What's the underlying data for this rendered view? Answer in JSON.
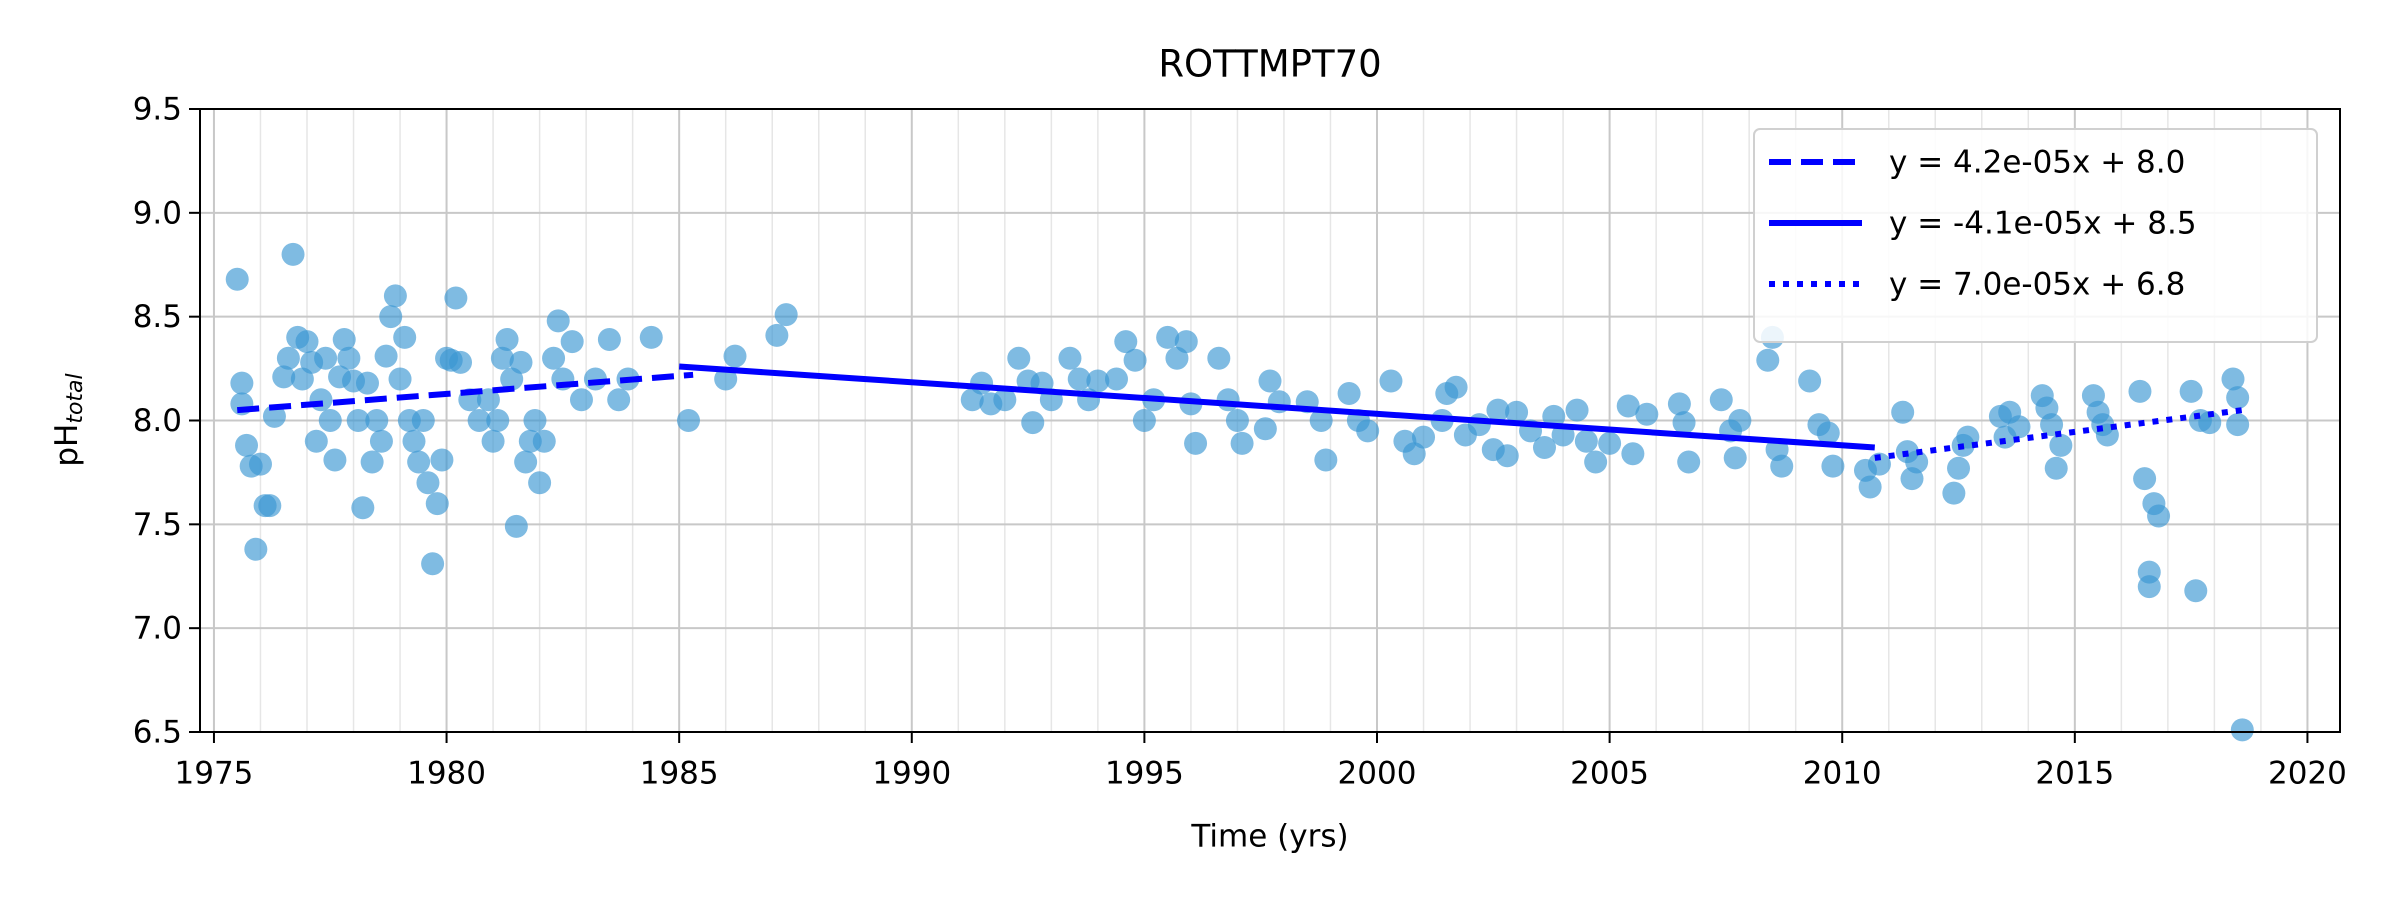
{
  "chart_data": {
    "type": "scatter",
    "title": "ROTTMPT70",
    "xlabel": "Time (yrs)",
    "ylabel": "pH",
    "ylabel_sub": "total",
    "xlim": [
      1974.7,
      2020.7
    ],
    "ylim": [
      6.5,
      9.5
    ],
    "xticks": [
      1975,
      1980,
      1985,
      1990,
      1995,
      2000,
      2005,
      2010,
      2015,
      2020
    ],
    "yticks": [
      6.5,
      {
        "value": 7,
        "label": "7.0"
      },
      7.5,
      {
        "value": 8,
        "label": "8.0"
      },
      8.5,
      {
        "value": 9,
        "label": "9.0"
      },
      9.5
    ],
    "grid": true,
    "minor_grid_x": true,
    "legend": "upper right",
    "color": "#3a97d3",
    "x": [
      1975.5,
      1975.6,
      1975.6,
      1975.7,
      1975.8,
      1975.9,
      1976.0,
      1976.1,
      1976.2,
      1976.3,
      1976.5,
      1976.6,
      1976.7,
      1976.8,
      1976.9,
      1977.0,
      1977.1,
      1977.2,
      1977.3,
      1977.4,
      1977.5,
      1977.6,
      1977.7,
      1977.8,
      1977.9,
      1978.0,
      1978.1,
      1978.2,
      1978.3,
      1978.4,
      1978.5,
      1978.6,
      1978.7,
      1978.8,
      1978.9,
      1979.0,
      1979.1,
      1979.2,
      1979.3,
      1979.4,
      1979.5,
      1979.6,
      1979.7,
      1979.8,
      1979.9,
      1980.0,
      1980.1,
      1980.2,
      1980.3,
      1980.5,
      1980.7,
      1980.9,
      1981.0,
      1981.1,
      1981.2,
      1981.3,
      1981.4,
      1981.5,
      1981.6,
      1981.7,
      1981.8,
      1981.9,
      1982.0,
      1982.1,
      1982.3,
      1982.4,
      1982.5,
      1982.7,
      1982.9,
      1983.2,
      1983.5,
      1983.7,
      1983.9,
      1984.4,
      1985.2,
      1986.0,
      1986.2,
      1987.1,
      1987.3,
      1991.3,
      1991.5,
      1991.7,
      1992.0,
      1992.3,
      1992.5,
      1992.6,
      1992.8,
      1993.0,
      1993.4,
      1993.6,
      1993.8,
      1994.0,
      1994.4,
      1994.6,
      1994.8,
      1995.0,
      1995.2,
      1995.5,
      1995.7,
      1995.9,
      1996.0,
      1996.1,
      1996.6,
      1996.8,
      1997.0,
      1997.1,
      1997.6,
      1997.7,
      1997.9,
      1998.5,
      1998.8,
      1998.9,
      1999.4,
      1999.6,
      1999.8,
      2000.3,
      2000.6,
      2000.8,
      2001.0,
      2001.4,
      2001.5,
      2001.7,
      2001.9,
      2002.2,
      2002.5,
      2002.6,
      2002.8,
      2003.0,
      2003.3,
      2003.6,
      2003.8,
      2004.0,
      2004.3,
      2004.5,
      2004.7,
      2005.0,
      2005.4,
      2005.5,
      2005.8,
      2006.5,
      2006.6,
      2006.7,
      2007.4,
      2007.6,
      2007.7,
      2007.8,
      2008.4,
      2008.5,
      2008.6,
      2008.7,
      2009.3,
      2009.5,
      2009.7,
      2009.8,
      2010.5,
      2010.6,
      2010.8,
      2011.3,
      2011.4,
      2011.5,
      2011.6,
      2012.4,
      2012.5,
      2012.6,
      2012.7,
      2013.4,
      2013.5,
      2013.6,
      2013.8,
      2014.3,
      2014.4,
      2014.5,
      2014.6,
      2014.7,
      2015.4,
      2015.5,
      2015.6,
      2015.7,
      2016.4,
      2016.5,
      2016.6,
      2016.6,
      2016.7,
      2016.8,
      2017.5,
      2017.6,
      2017.7,
      2017.9,
      2018.4,
      2018.5,
      2018.5,
      2018.6
    ],
    "values": [
      8.68,
      8.18,
      8.08,
      7.88,
      7.78,
      7.38,
      7.79,
      7.59,
      7.59,
      8.02,
      8.21,
      8.3,
      8.8,
      8.4,
      8.2,
      8.38,
      8.28,
      7.9,
      8.1,
      8.3,
      8.0,
      7.81,
      8.21,
      8.39,
      8.3,
      8.19,
      8.0,
      7.58,
      8.18,
      7.8,
      8.0,
      7.9,
      8.31,
      8.5,
      8.6,
      8.2,
      8.4,
      8.0,
      7.9,
      7.8,
      8.0,
      7.7,
      7.31,
      7.6,
      7.81,
      8.3,
      8.29,
      8.59,
      8.28,
      8.1,
      8.0,
      8.1,
      7.9,
      8.0,
      8.3,
      8.39,
      8.2,
      7.49,
      8.28,
      7.8,
      7.9,
      8.0,
      7.7,
      7.9,
      8.3,
      8.48,
      8.2,
      8.38,
      8.1,
      8.2,
      8.39,
      8.1,
      8.2,
      8.4,
      8.0,
      8.2,
      8.31,
      8.41,
      8.51,
      8.1,
      8.18,
      8.08,
      8.1,
      8.3,
      8.19,
      7.99,
      8.18,
      8.1,
      8.3,
      8.2,
      8.1,
      8.19,
      8.2,
      8.38,
      8.29,
      8.0,
      8.1,
      8.4,
      8.3,
      8.38,
      8.08,
      7.89,
      8.3,
      8.1,
      8.0,
      7.89,
      7.96,
      8.19,
      8.09,
      8.09,
      8.0,
      7.81,
      8.13,
      8.0,
      7.95,
      8.19,
      7.9,
      7.84,
      7.92,
      8.0,
      8.13,
      8.16,
      7.93,
      7.98,
      7.86,
      8.05,
      7.83,
      8.04,
      7.95,
      7.87,
      8.02,
      7.93,
      8.05,
      7.9,
      7.8,
      7.89,
      8.07,
      7.84,
      8.03,
      8.08,
      7.99,
      7.8,
      8.1,
      7.95,
      7.82,
      8.0,
      8.29,
      8.4,
      7.86,
      7.78,
      8.19,
      7.98,
      7.94,
      7.78,
      7.76,
      7.68,
      7.79,
      8.04,
      7.85,
      7.72,
      7.8,
      7.65,
      7.77,
      7.88,
      7.92,
      8.02,
      7.92,
      8.04,
      7.97,
      8.12,
      8.06,
      7.98,
      7.77,
      7.88,
      8.12,
      8.04,
      7.98,
      7.93,
      8.14,
      7.72,
      7.27,
      7.2,
      7.6,
      7.54,
      8.14,
      7.18,
      8.0,
      7.99,
      8.2,
      8.11,
      7.98,
      6.51
    ],
    "series": [
      {
        "name": "y = 4.2e-05x + 8.0",
        "color": "#0000ff",
        "style": "dashed",
        "x": [
          1975.5,
          1985.3
        ],
        "values": [
          8.05,
          8.22
        ]
      },
      {
        "name": "y = -4.1e-05x + 8.5",
        "color": "#0000ff",
        "style": "solid",
        "x": [
          1985.0,
          2010.7
        ],
        "values": [
          8.26,
          7.87
        ]
      },
      {
        "name": "y = 7.0e-05x + 6.8",
        "color": "#0000ff",
        "style": "dotted",
        "x": [
          2010.7,
          2018.6
        ],
        "values": [
          7.82,
          8.05
        ]
      }
    ]
  }
}
